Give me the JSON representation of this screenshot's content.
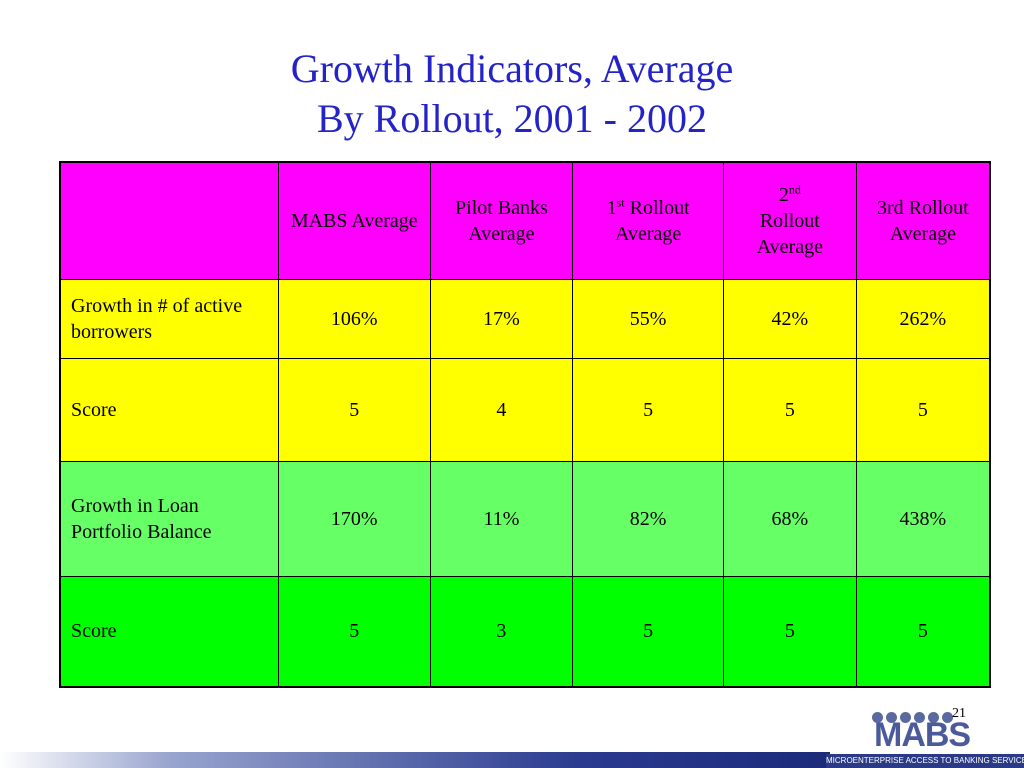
{
  "slide": {
    "title_line1": "Growth Indicators, Average",
    "title_line2": "By Rollout, 2001 - 2002",
    "page_number": "21"
  },
  "table": {
    "headers": {
      "corner": "",
      "mabs": "MABS Average",
      "pilot": "Pilot Banks Average",
      "r1_base": "1",
      "r1_sup": "st",
      "r1_rest": " Rollout Average",
      "r2_base": "2",
      "r2_sup": "nd",
      "r2_rest": "Rollout Average",
      "r3": "3rd Rollout Average"
    },
    "rows": [
      {
        "label": "Growth in # of active borrowers",
        "values": [
          "106%",
          "17%",
          "55%",
          "42%",
          "262%"
        ]
      },
      {
        "label": "Score",
        "values": [
          "5",
          "4",
          "5",
          "5",
          "5"
        ]
      },
      {
        "label": "Growth in Loan Portfolio Balance",
        "values": [
          "170%",
          "11%",
          "82%",
          "68%",
          "438%"
        ]
      },
      {
        "label": "Score",
        "values": [
          "5",
          "3",
          "5",
          "5",
          "5"
        ]
      }
    ]
  },
  "logo": {
    "letters": "MABS",
    "tagline": "MICROENTERPRISE ACCESS TO BANKING SERVICES"
  },
  "colors": {
    "title": "#2323c8",
    "header_row": "#ff00ff",
    "borrowers_rows": "#ffff00",
    "loan_growth_row": "#66ff66",
    "loan_score_row": "#00ff00"
  }
}
